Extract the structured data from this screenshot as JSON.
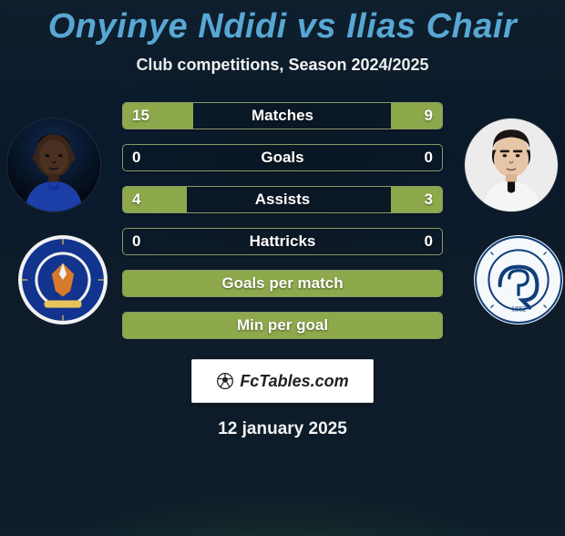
{
  "title": "Onyinye Ndidi vs Ilias Chair",
  "subtitle": "Club competitions, Season 2024/2025",
  "date": "12 january 2025",
  "fcbadge_label": "FcTables.com",
  "players": {
    "left": {
      "name": "Onyinye Ndidi",
      "club": "Leicester City"
    },
    "right": {
      "name": "Ilias Chair",
      "club": "Queens Park Rangers"
    }
  },
  "colors": {
    "title": "#58a7d4",
    "bar_fill": "#8ea94c",
    "bar_border": "#8a9a66",
    "text": "#ffffff",
    "background_top": "#0e1f2e",
    "background_bottom": "#0d1c2a"
  },
  "stat_rows": [
    {
      "label": "Matches",
      "left": "15",
      "right": "9",
      "fill_left_pct": 22,
      "fill_right_pct": 16
    },
    {
      "label": "Goals",
      "left": "0",
      "right": "0",
      "fill_left_pct": 0,
      "fill_right_pct": 0
    },
    {
      "label": "Assists",
      "left": "4",
      "right": "3",
      "fill_left_pct": 20,
      "fill_right_pct": 16
    },
    {
      "label": "Hattricks",
      "left": "0",
      "right": "0",
      "fill_left_pct": 0,
      "fill_right_pct": 0
    },
    {
      "label": "Goals per match",
      "left": "",
      "right": "",
      "fill_left_pct": 100,
      "fill_right_pct": 0,
      "full": true
    },
    {
      "label": "Min per goal",
      "left": "",
      "right": "",
      "fill_left_pct": 100,
      "fill_right_pct": 0,
      "full": true
    }
  ]
}
